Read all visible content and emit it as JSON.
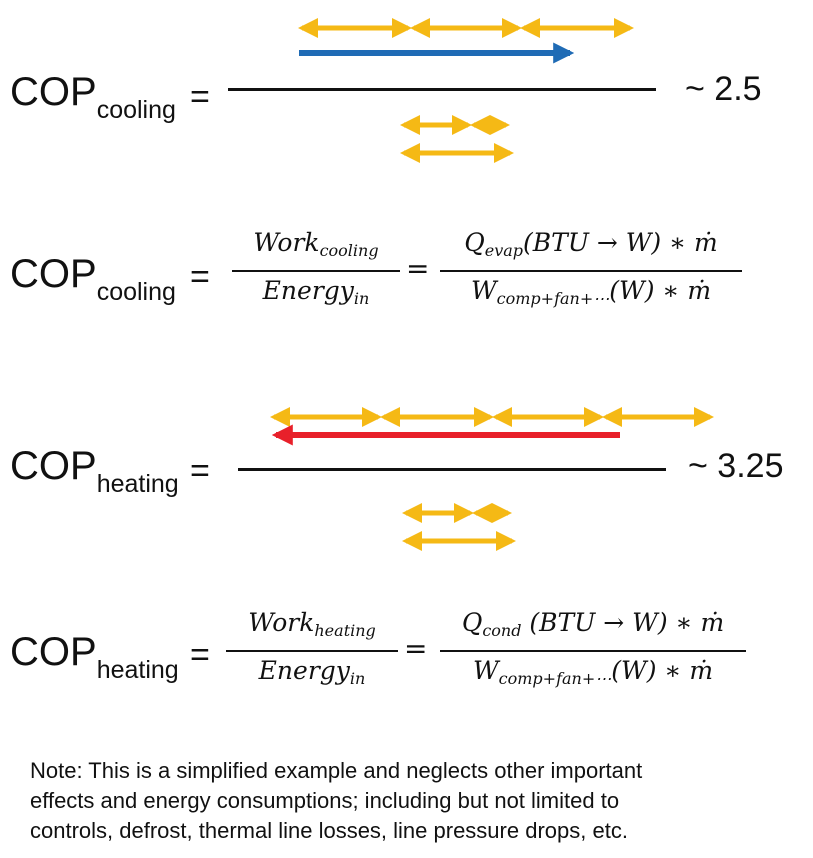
{
  "cop_cooling_simple": {
    "label_main": "COP",
    "label_sub": "cooling",
    "equals": "=",
    "approx": "~ 2.5"
  },
  "cop_cooling_formula": {
    "label_main": "COP",
    "label_sub": "cooling",
    "equals": "=",
    "frac1_num_main": "Work",
    "frac1_num_sub": "cooling",
    "frac1_den_main": "Energy",
    "frac1_den_sub": "in",
    "mid_equals": "=",
    "frac2_num_q": "Q",
    "frac2_num_sub": "evap",
    "frac2_num_rest": "(BTU → W) ∗ ṁ",
    "frac2_den_w": "W",
    "frac2_den_sub": "comp+fan+⋯",
    "frac2_den_rest": "(W) ∗ ṁ"
  },
  "cop_heating_simple": {
    "label_main": "COP",
    "label_sub": "heating",
    "equals": "=",
    "approx": "~ 3.25"
  },
  "cop_heating_formula": {
    "label_main": "COP",
    "label_sub": "heating",
    "equals": "=",
    "frac1_num_main": "Work",
    "frac1_num_sub": "heating",
    "frac1_den_main": "Energy",
    "frac1_den_sub": "in",
    "mid_equals": "=",
    "frac2_num_q": "Q",
    "frac2_num_sub": "cond",
    "frac2_num_rest": " (BTU → W) ∗ ṁ",
    "frac2_den_w": "W",
    "frac2_den_sub": "comp+fan+⋯",
    "frac2_den_rest": "(W) ∗ ṁ"
  },
  "colors": {
    "yellow_arrow": "#F5B915",
    "blue_arrow": "#1F6BB5",
    "red_arrow": "#E8202A",
    "text": "#111111"
  },
  "note": {
    "line1": "Note: This is a simplified example and neglects other important",
    "line2": "effects and energy consumptions; including but not limited to",
    "line3": "controls, defrost, thermal line losses, line pressure drops, etc."
  }
}
